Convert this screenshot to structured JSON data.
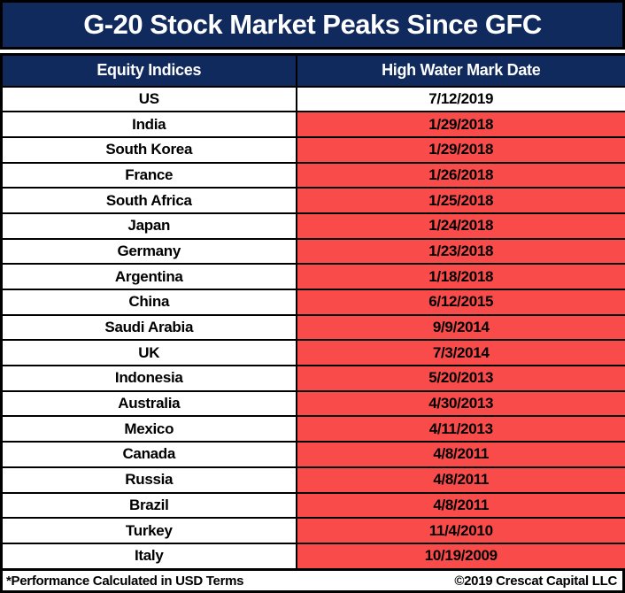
{
  "colors": {
    "navy": "#102A5E",
    "red": "#FA4B4B",
    "border": "#000000",
    "text_light": "#FFFFFF",
    "text_dark": "#000000"
  },
  "title": "G-20 Stock Market Peaks Since GFC",
  "table": {
    "columns": [
      "Equity Indices",
      "High Water Mark Date"
    ],
    "rows": [
      {
        "country": "US",
        "date": "7/12/2019",
        "highlight": false
      },
      {
        "country": "India",
        "date": "1/29/2018",
        "highlight": true
      },
      {
        "country": "South Korea",
        "date": "1/29/2018",
        "highlight": true
      },
      {
        "country": "France",
        "date": "1/26/2018",
        "highlight": true
      },
      {
        "country": "South Africa",
        "date": "1/25/2018",
        "highlight": true
      },
      {
        "country": "Japan",
        "date": "1/24/2018",
        "highlight": true
      },
      {
        "country": "Germany",
        "date": "1/23/2018",
        "highlight": true
      },
      {
        "country": "Argentina",
        "date": "1/18/2018",
        "highlight": true
      },
      {
        "country": "China",
        "date": "6/12/2015",
        "highlight": true
      },
      {
        "country": "Saudi Arabia",
        "date": "9/9/2014",
        "highlight": true
      },
      {
        "country": "UK",
        "date": "7/3/2014",
        "highlight": true
      },
      {
        "country": "Indonesia",
        "date": "5/20/2013",
        "highlight": true
      },
      {
        "country": "Australia",
        "date": "4/30/2013",
        "highlight": true
      },
      {
        "country": "Mexico",
        "date": "4/11/2013",
        "highlight": true
      },
      {
        "country": "Canada",
        "date": "4/8/2011",
        "highlight": true
      },
      {
        "country": "Russia",
        "date": "4/8/2011",
        "highlight": true
      },
      {
        "country": "Brazil",
        "date": "4/8/2011",
        "highlight": true
      },
      {
        "country": "Turkey",
        "date": "11/4/2010",
        "highlight": true
      },
      {
        "country": "Italy",
        "date": "10/19/2009",
        "highlight": true
      }
    ]
  },
  "footer": {
    "note": "*Performance Calculated in USD Terms",
    "copyright": "©2019 Crescat Capital LLC"
  },
  "chart_data": {
    "type": "table",
    "title": "G-20 Stock Market Peaks Since GFC",
    "columns": [
      "Equity Indices",
      "High Water Mark Date"
    ],
    "rows": [
      [
        "US",
        "7/12/2019"
      ],
      [
        "India",
        "1/29/2018"
      ],
      [
        "South Korea",
        "1/29/2018"
      ],
      [
        "France",
        "1/26/2018"
      ],
      [
        "South Africa",
        "1/25/2018"
      ],
      [
        "Japan",
        "1/24/2018"
      ],
      [
        "Germany",
        "1/23/2018"
      ],
      [
        "Argentina",
        "1/18/2018"
      ],
      [
        "China",
        "6/12/2015"
      ],
      [
        "Saudi Arabia",
        "9/9/2014"
      ],
      [
        "UK",
        "7/3/2014"
      ],
      [
        "Indonesia",
        "5/20/2013"
      ],
      [
        "Australia",
        "4/30/2013"
      ],
      [
        "Mexico",
        "4/11/2013"
      ],
      [
        "Canada",
        "4/8/2011"
      ],
      [
        "Russia",
        "4/8/2011"
      ],
      [
        "Brazil",
        "4/8/2011"
      ],
      [
        "Turkey",
        "11/4/2010"
      ],
      [
        "Italy",
        "10/19/2009"
      ]
    ],
    "highlighted_rows": "all rows except US have red date cells",
    "notes": [
      "*Performance Calculated in USD Terms",
      "©2019 Crescat Capital LLC"
    ]
  }
}
